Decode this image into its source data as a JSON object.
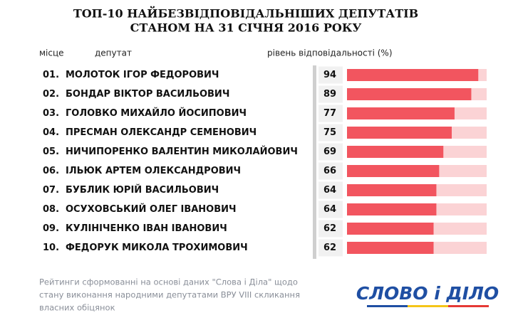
{
  "chart_data": {
    "type": "bar",
    "title": [
      "ТОП-10 НАЙБЕЗВІДПОВІДАЛЬНІШИХ ДЕПУТАТІВ",
      "СТАНОМ НА 31 СІЧНЯ 2016 РОКУ"
    ],
    "column_headers": [
      "місце",
      "депутат",
      "рівень відповідальності (%)"
    ],
    "ranks": [
      "01.",
      "02.",
      "03.",
      "04.",
      "05.",
      "06.",
      "07.",
      "08.",
      "09.",
      "10."
    ],
    "categories": [
      "МОЛОТОК ІГОР ФЕДОРОВИЧ",
      "БОНДАР ВІКТОР ВАСИЛЬОВИЧ",
      "ГОЛОВКО МИХАЙЛО ЙОСИПОВИЧ",
      "ПРЕСМАН ОЛЕКСАНДР СЕМЕНОВИЧ",
      "НИЧИПОРЕНКО ВАЛЕНТИН МИКОЛАЙОВИЧ",
      "ІЛЬЮК АРТЕМ ОЛЕКСАНДРОВИЧ",
      "БУБЛИК ЮРІЙ ВАСИЛЬОВИЧ",
      "ОСУХОВСЬКИЙ ОЛЕГ ІВАНОВИЧ",
      "КУЛІНІЧЕНКО ІВАН ІВАНОВИЧ",
      "ФЕДОРУК МИКОЛА ТРОХИМОВИЧ"
    ],
    "values": [
      94,
      89,
      77,
      75,
      69,
      66,
      64,
      64,
      62,
      62
    ],
    "color": "#f2555f",
    "track_color": "#fbd3d5",
    "xlim": [
      0,
      100
    ],
    "footnote": [
      "Рейтинги сформованні на основі даних \"Слова і Діла\" щодо",
      "стану виконання народними депутатами ВРУ VIII скликання",
      "власних обіцянок"
    ],
    "logo": "СЛОВО і ДІЛО"
  }
}
